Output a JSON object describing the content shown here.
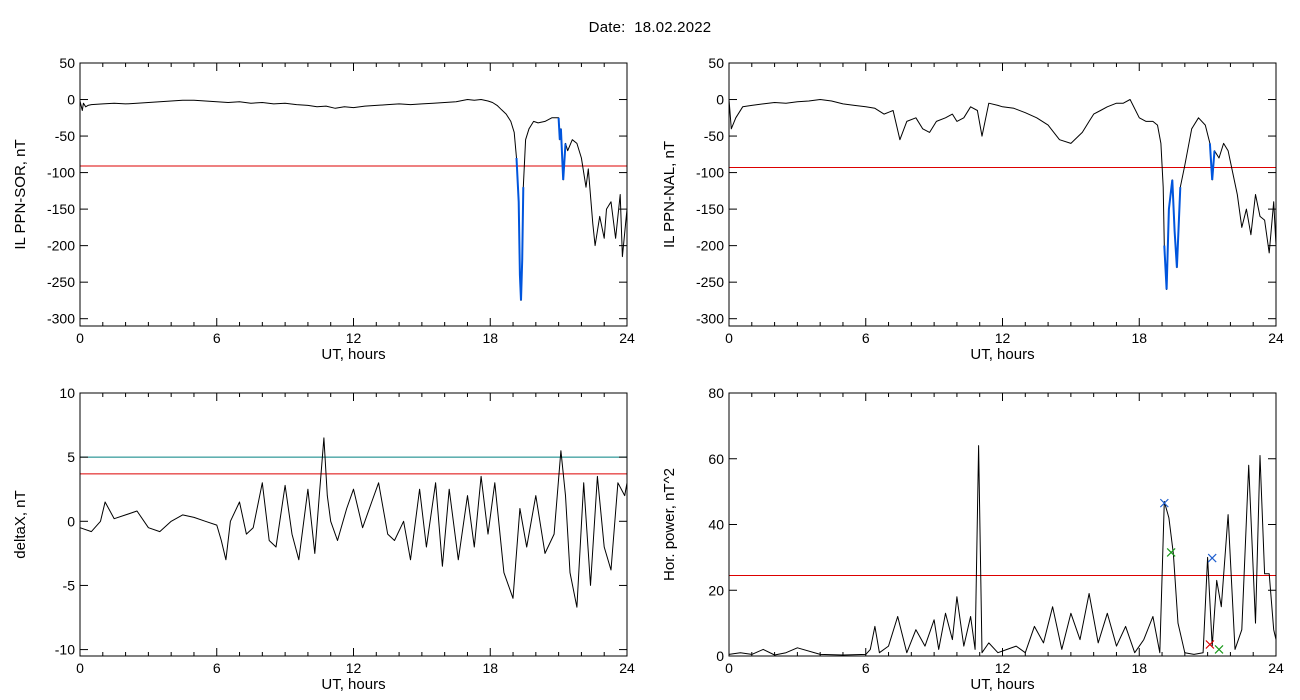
{
  "header": {
    "date_label": "Date:",
    "date_value": "18.02.2022"
  },
  "colors": {
    "threshold": "#dd0000",
    "threshold2": "#008080",
    "highlight": "#0055dd",
    "line": "#000000",
    "mark_blue": "#1f5fcf",
    "mark_green": "#1a9a1a",
    "mark_red": "#dd2222"
  },
  "chart_data": [
    {
      "type": "line",
      "title": "",
      "xlabel": "UT, hours",
      "ylabel": "IL PPN-SOR, nT",
      "xlim": [
        0,
        24
      ],
      "ylim": [
        -310,
        50
      ],
      "xticks": [
        0,
        6,
        12,
        18,
        24
      ],
      "yticks": [
        50,
        0,
        -50,
        -100,
        -150,
        -200,
        -250,
        -300
      ],
      "thresholds": [
        {
          "y": -91,
          "color": "red"
        }
      ],
      "series": [
        {
          "x": [
            0,
            0.1,
            0.15,
            0.25,
            0.35,
            0.5,
            1,
            1.5,
            2,
            2.5,
            3,
            3.5,
            4,
            4.5,
            5,
            5.5,
            6,
            6.5,
            7,
            7.5,
            8,
            8.5,
            9,
            9.5,
            10,
            10.4,
            10.8,
            11.2,
            11.6,
            12,
            12.5,
            13,
            13.5,
            14,
            14.5,
            15,
            15.5,
            16,
            16.5,
            17,
            17.3,
            17.6,
            17.9,
            18.1,
            18.3,
            18.5,
            18.7,
            18.9,
            19.05,
            19.15,
            19.25,
            19.3,
            19.35,
            19.4,
            19.45,
            19.55,
            19.7,
            19.9,
            20.1,
            20.4,
            20.7,
            21,
            21.05,
            21.1,
            21.2,
            21.3,
            21.4,
            21.6,
            21.8,
            22,
            22.2,
            22.3,
            22.5,
            22.6,
            22.8,
            23,
            23.1,
            23.3,
            23.5,
            23.7,
            23.8,
            24
          ],
          "y": [
            -2,
            -15,
            -5,
            -10,
            -8,
            -7,
            -6,
            -5,
            -6,
            -5,
            -4,
            -3,
            -2,
            -1,
            -1,
            -2,
            -3,
            -4,
            -3,
            -5,
            -4,
            -6,
            -5,
            -7,
            -8,
            -10,
            -9,
            -12,
            -10,
            -11,
            -9,
            -8,
            -7,
            -6,
            -7,
            -6,
            -5,
            -4,
            -3,
            0,
            -1,
            0,
            -2,
            -4,
            -8,
            -14,
            -20,
            -30,
            -45,
            -80,
            -140,
            -240,
            -275,
            -220,
            -120,
            -55,
            -40,
            -30,
            -32,
            -30,
            -25,
            -25,
            -55,
            -40,
            -110,
            -60,
            -70,
            -55,
            -60,
            -80,
            -120,
            -95,
            -170,
            -200,
            -160,
            -190,
            -150,
            -140,
            -190,
            -130,
            -215,
            -150
          ],
          "highlight_ranges": [
            [
              19.1,
              19.5
            ],
            [
              21.0,
              21.35
            ]
          ]
        }
      ]
    },
    {
      "type": "line",
      "title": "",
      "xlabel": "UT, hours",
      "ylabel": "IL PPN-NAL, nT",
      "xlim": [
        0,
        24
      ],
      "ylim": [
        -310,
        50
      ],
      "xticks": [
        0,
        6,
        12,
        18,
        24
      ],
      "yticks": [
        50,
        0,
        -50,
        -100,
        -150,
        -200,
        -250,
        -300
      ],
      "thresholds": [
        {
          "y": -93,
          "color": "red"
        }
      ],
      "series": [
        {
          "x": [
            0,
            0.1,
            0.3,
            0.6,
            1,
            1.5,
            2,
            2.5,
            3,
            3.5,
            4,
            4.5,
            5,
            5.5,
            6,
            6.4,
            6.8,
            7.2,
            7.5,
            7.8,
            8.2,
            8.5,
            8.8,
            9.1,
            9.5,
            9.8,
            10,
            10.3,
            10.6,
            10.9,
            11.1,
            11.4,
            11.8,
            12,
            12.5,
            13,
            13.5,
            14,
            14.5,
            15,
            15.5,
            15.8,
            16,
            16.3,
            16.6,
            17,
            17.3,
            17.6,
            18,
            18.3,
            18.6,
            18.8,
            18.95,
            19.05,
            19.1,
            19.2,
            19.3,
            19.45,
            19.55,
            19.65,
            19.8,
            20,
            20.3,
            20.6,
            20.9,
            21.1,
            21.2,
            21.3,
            21.5,
            21.7,
            21.9,
            22.1,
            22.3,
            22.5,
            22.7,
            22.9,
            23.1,
            23.3,
            23.5,
            23.7,
            23.9,
            24
          ],
          "y": [
            0,
            -40,
            -25,
            -10,
            -8,
            -6,
            -4,
            -5,
            -3,
            -2,
            0,
            -2,
            -6,
            -8,
            -10,
            -12,
            -20,
            -15,
            -55,
            -30,
            -25,
            -40,
            -45,
            -30,
            -25,
            -20,
            -30,
            -25,
            -10,
            -15,
            -50,
            -5,
            -8,
            -10,
            -12,
            -18,
            -25,
            -35,
            -55,
            -60,
            -45,
            -30,
            -20,
            -15,
            -10,
            -5,
            -5,
            0,
            -25,
            -30,
            -30,
            -35,
            -60,
            -120,
            -200,
            -260,
            -150,
            -110,
            -180,
            -230,
            -120,
            -90,
            -40,
            -25,
            -35,
            -60,
            -110,
            -70,
            -80,
            -60,
            -70,
            -100,
            -130,
            -175,
            -150,
            -185,
            -130,
            -160,
            -165,
            -210,
            -140,
            -200
          ],
          "highlight_ranges": [
            [
              19.1,
              19.9
            ],
            [
              21.05,
              21.3
            ]
          ]
        }
      ]
    },
    {
      "type": "line",
      "title": "",
      "xlabel": "UT, hours",
      "ylabel": "deltaX, nT",
      "xlim": [
        0,
        24
      ],
      "ylim": [
        -10.5,
        10
      ],
      "xticks": [
        0,
        6,
        12,
        18,
        24
      ],
      "yticks": [
        10,
        5,
        0,
        -5,
        -10
      ],
      "thresholds": [
        {
          "y": 5,
          "color": "teal"
        },
        {
          "y": 3.7,
          "color": "red"
        }
      ],
      "series": [
        {
          "x": [
            0,
            0.5,
            0.9,
            1.1,
            1.5,
            2,
            2.5,
            3,
            3.5,
            4,
            4.5,
            5,
            5.5,
            6,
            6.2,
            6.4,
            6.6,
            7,
            7.3,
            7.6,
            8,
            8.3,
            8.6,
            9,
            9.3,
            9.6,
            10,
            10.3,
            10.5,
            10.7,
            10.85,
            11,
            11.3,
            11.7,
            12,
            12.4,
            12.8,
            13.1,
            13.5,
            13.8,
            14.2,
            14.5,
            14.9,
            15.2,
            15.6,
            15.9,
            16.2,
            16.6,
            17,
            17.3,
            17.6,
            17.9,
            18.2,
            18.6,
            19,
            19.3,
            19.6,
            20,
            20.4,
            20.8,
            21.1,
            21.3,
            21.5,
            21.8,
            22.1,
            22.4,
            22.7,
            23,
            23.3,
            23.6,
            23.9,
            24
          ],
          "y": [
            -0.5,
            -0.8,
            0,
            1.5,
            0.2,
            0.5,
            0.8,
            -0.5,
            -0.8,
            0,
            0.5,
            0.3,
            0,
            -0.3,
            -1.5,
            -3,
            0,
            1.5,
            -1,
            -0.5,
            3,
            -1.5,
            -2,
            2.8,
            -1,
            -3,
            2.5,
            -2.5,
            2,
            6.5,
            2,
            0,
            -1.5,
            1,
            2.5,
            -0.5,
            1.5,
            3,
            -1,
            -1.5,
            0,
            -3,
            2.5,
            -2,
            3,
            -3.5,
            2.5,
            -3,
            2,
            -2,
            3.5,
            -1,
            3,
            -4,
            -6,
            1,
            -2,
            2,
            -2.5,
            -1,
            5.5,
            2,
            -4,
            -6.7,
            3,
            -5,
            3.5,
            -2,
            -3.8,
            3,
            2,
            3
          ]
        }
      ]
    },
    {
      "type": "line",
      "title": "",
      "xlabel": "UT, hours",
      "ylabel": "Hor. power, nT^2",
      "xlim": [
        0,
        24
      ],
      "ylim": [
        0,
        80
      ],
      "xticks": [
        0,
        6,
        12,
        18,
        24
      ],
      "yticks": [
        0,
        20,
        40,
        60,
        80
      ],
      "thresholds": [
        {
          "y": 24.5,
          "color": "red"
        }
      ],
      "series": [
        {
          "x": [
            0,
            0.5,
            1,
            1.5,
            2,
            2.5,
            3,
            4,
            5,
            6,
            6.2,
            6.4,
            6.6,
            7,
            7.4,
            7.8,
            8.2,
            8.6,
            9,
            9.2,
            9.5,
            9.8,
            10,
            10.3,
            10.6,
            10.8,
            10.95,
            11.1,
            11.4,
            11.8,
            12.2,
            12.6,
            13,
            13.4,
            13.8,
            14.2,
            14.6,
            15,
            15.4,
            15.8,
            16.2,
            16.6,
            17,
            17.4,
            17.8,
            18.2,
            18.6,
            18.9,
            19.1,
            19.3,
            19.5,
            19.7,
            20,
            20.4,
            20.8,
            21,
            21.2,
            21.4,
            21.6,
            21.9,
            22.2,
            22.5,
            22.8,
            23.1,
            23.3,
            23.5,
            23.7,
            23.9,
            24
          ],
          "y": [
            0.5,
            1,
            0.5,
            2,
            0.3,
            1,
            2.5,
            0.5,
            0.3,
            0.5,
            2,
            9,
            1,
            3,
            12,
            1,
            8,
            3,
            11,
            2,
            13,
            5,
            18,
            3,
            12,
            2,
            64,
            1,
            4,
            1,
            2,
            3,
            1,
            9,
            4,
            15,
            2,
            13,
            5,
            19,
            4,
            13,
            3,
            9,
            1,
            5,
            12,
            1,
            47,
            42,
            31,
            10,
            1,
            0.5,
            1,
            30,
            3,
            23,
            15,
            43,
            2,
            8,
            58,
            10,
            61,
            25,
            25,
            8,
            5
          ]
        }
      ],
      "markers": [
        {
          "x": 19.1,
          "y": 46.5,
          "symbol": "x",
          "color": "blue"
        },
        {
          "x": 19.4,
          "y": 31.5,
          "symbol": "x",
          "color": "green"
        },
        {
          "x": 21.2,
          "y": 29.8,
          "symbol": "x",
          "color": "blue"
        },
        {
          "x": 21.1,
          "y": 3.5,
          "symbol": "x",
          "color": "red"
        },
        {
          "x": 21.5,
          "y": 2,
          "symbol": "x",
          "color": "green"
        }
      ]
    }
  ]
}
